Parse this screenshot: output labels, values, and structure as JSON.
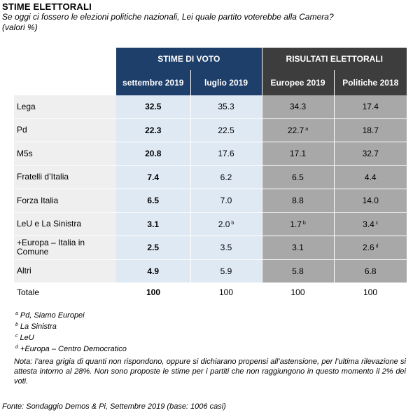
{
  "header": {
    "title": "STIME ELETTORALI",
    "subtitle": "Se oggi ci fossero le elezioni politiche nazionali,  Lei quale partito voterebbe alla Camera?",
    "subtitle2": "(valori %)"
  },
  "chart_data": {
    "type": "table",
    "groups": [
      {
        "label": "STIME DI VOTO",
        "columns": [
          "settembre 2019",
          "luglio 2019"
        ]
      },
      {
        "label": "RISULTATI ELETTORALI",
        "columns": [
          "Europee 2019",
          "Politiche 2018"
        ]
      }
    ],
    "columns": [
      "settembre 2019",
      "luglio 2019",
      "Europee 2019",
      "Politiche 2018"
    ],
    "rows": [
      {
        "party": "Lega",
        "values": [
          "32.5",
          "35.3",
          "34.3",
          "17.4"
        ],
        "marks": [
          "",
          "",
          "",
          ""
        ]
      },
      {
        "party": "Pd",
        "values": [
          "22.3",
          "22.5",
          "22.7",
          "18.7"
        ],
        "marks": [
          "",
          "",
          "a",
          ""
        ]
      },
      {
        "party": "M5s",
        "values": [
          "20.8",
          "17.6",
          "17.1",
          "32.7"
        ],
        "marks": [
          "",
          "",
          "",
          ""
        ]
      },
      {
        "party": "Fratelli d’Italia",
        "values": [
          "7.4",
          "6.2",
          "6.5",
          "4.4"
        ],
        "marks": [
          "",
          "",
          "",
          ""
        ]
      },
      {
        "party": "Forza Italia",
        "values": [
          "6.5",
          "7.0",
          "8.8",
          "14.0"
        ],
        "marks": [
          "",
          "",
          "",
          ""
        ]
      },
      {
        "party": "LeU e La Sinistra",
        "values": [
          "3.1",
          "2.0",
          "1.7",
          "3.4"
        ],
        "marks": [
          "",
          "b",
          "b",
          "c"
        ]
      },
      {
        "party": "+Europa – Italia in Comune",
        "values": [
          "2.5",
          "3.5",
          "3.1",
          "2.6"
        ],
        "marks": [
          "",
          "",
          "",
          "d"
        ]
      },
      {
        "party": "Altri",
        "values": [
          "4.9",
          "5.9",
          "5.8",
          "6.8"
        ],
        "marks": [
          "",
          "",
          "",
          ""
        ]
      }
    ],
    "total": {
      "label": "Totale",
      "values": [
        "100",
        "100",
        "100",
        "100"
      ]
    },
    "colors": {
      "blue_header": "#1f3f6b",
      "grey_header": "#3d3d3d",
      "blue_cell": "#dfe9f4",
      "grey_cell": "#a8a8a8",
      "label_cell": "#efefef"
    }
  },
  "footnotes": [
    {
      "mark": "a",
      "text": "Pd, Siamo Europei"
    },
    {
      "mark": "b",
      "text": "La Sinistra"
    },
    {
      "mark": "c",
      "text": "LeU"
    },
    {
      "mark": "d",
      "text": "+Europa – Centro Democratico"
    }
  ],
  "note": "Nota: l’area grigia di quanti non rispondono, oppure si dichiarano propensi all’astensione, per l’ultima rilevazione si attesta intorno al 28%. Non sono proposte le stime per i partiti che non raggiungono in questo momento il 2% dei voti.",
  "source": "Fonte: Sondaggio Demos & Pi, Settembre 2019 (base: 1006 casi)"
}
